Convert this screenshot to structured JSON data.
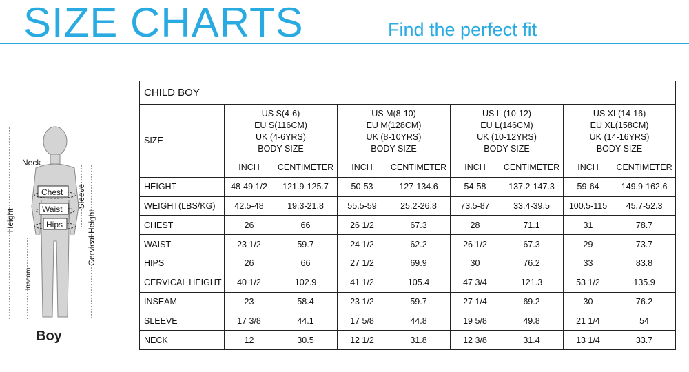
{
  "header": {
    "title": "SIZE CHARTS",
    "subtitle": "Find the perfect fit"
  },
  "figure": {
    "neck": "Neck",
    "chest": "Chest",
    "waist": "Waist",
    "hips": "Hips",
    "height": "Height",
    "inseam": "Inseam",
    "sleeve": "Sleeve",
    "cervical_height": "Cervical Height",
    "caption": "Boy"
  },
  "table": {
    "title": "CHILD BOY",
    "size_label": "SIZE",
    "sizes": [
      {
        "lines": [
          "US S(4-6)",
          "EU S(116CM)",
          "UK (4-6YRS)",
          "BODY SIZE"
        ],
        "units": [
          "INCH",
          "CENTIMETER"
        ]
      },
      {
        "lines": [
          "US M(8-10)",
          "EU M(128CM)",
          "UK (8-10YRS)",
          "BODY SIZE"
        ],
        "units": [
          "INCH",
          "CENTIMETER"
        ]
      },
      {
        "lines": [
          "US L (10-12)",
          "EU L(146CM)",
          "UK (10-12YRS)",
          "BODY SIZE"
        ],
        "units": [
          "INCH",
          "CENTIMETER"
        ]
      },
      {
        "lines": [
          "US XL(14-16)",
          "EU XL(158CM)",
          "UK (14-16YRS)",
          "BODY SIZE"
        ],
        "units": [
          "INCH",
          "CENTIMETER"
        ]
      }
    ],
    "rows": [
      [
        "HEIGHT",
        "48-49 1/2",
        "121.9-125.7",
        "50-53",
        "127-134.6",
        "54-58",
        "137.2-147.3",
        "59-64",
        "149.9-162.6"
      ],
      [
        "WEIGHT(LBS/KG)",
        "42.5-48",
        "19.3-21.8",
        "55.5-59",
        "25.2-26.8",
        "73.5-87",
        "33.4-39.5",
        "100.5-115",
        "45.7-52.3"
      ],
      [
        "CHEST",
        "26",
        "66",
        "26 1/2",
        "67.3",
        "28",
        "71.1",
        "31",
        "78.7"
      ],
      [
        "WAIST",
        "23 1/2",
        "59.7",
        "24 1/2",
        "62.2",
        "26 1/2",
        "67.3",
        "29",
        "73.7"
      ],
      [
        "HIPS",
        "26",
        "66",
        "27 1/2",
        "69.9",
        "30",
        "76.2",
        "33",
        "83.8"
      ],
      [
        "CERVICAL HEIGHT",
        "40 1/2",
        "102.9",
        "41 1/2",
        "105.4",
        "47 3/4",
        "121.3",
        "53 1/2",
        "135.9"
      ],
      [
        "INSEAM",
        "23",
        "58.4",
        "23 1/2",
        "59.7",
        "27 1/4",
        "69.2",
        "30",
        "76.2"
      ],
      [
        "SLEEVE",
        "17 3/8",
        "44.1",
        "17 5/8",
        "44.8",
        "19 5/8",
        "49.8",
        "21 1/4",
        "54"
      ],
      [
        "NECK",
        "12",
        "30.5",
        "12 1/2",
        "31.8",
        "12 3/8",
        "31.4",
        "13 1/4",
        "33.7"
      ]
    ]
  }
}
